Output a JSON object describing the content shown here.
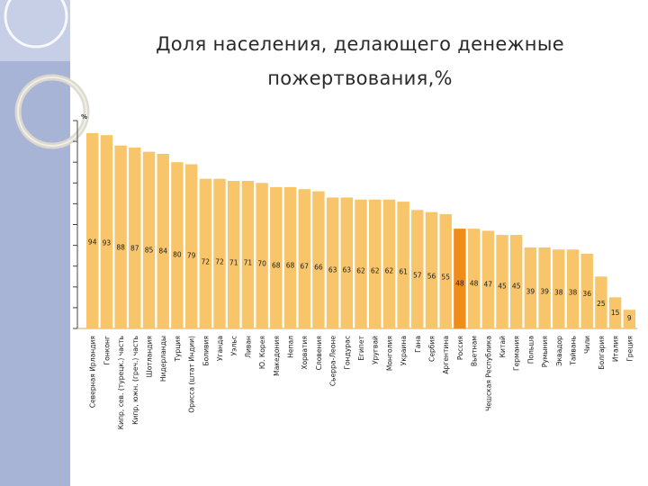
{
  "title": {
    "line1": "Доля населения, делающего денежные",
    "line2": "пожертвования,%"
  },
  "colors": {
    "bar": "#f8c56a",
    "highlight_bar": "#ef8c1a",
    "sidebar": "#a7b4d6"
  },
  "chart_data": {
    "type": "bar",
    "ylabel": "%",
    "ylim": [
      0,
      100
    ],
    "categories": [
      "Северная Ирландия",
      "Гонконг",
      "Кипр, сев. (турецк.) часть",
      "Кипр, южн. (греч.) часть",
      "Шотландия",
      "Нидерланды",
      "Турция",
      "Орисса (штат Индии)",
      "Боливия",
      "Уганда",
      "Уэльс",
      "Ливан",
      "Ю. Корея",
      "Македония",
      "Непал",
      "Хорватия",
      "Словения",
      "Сьерра-Леоне",
      "Гондурас",
      "Египет",
      "Уругвай",
      "Монголия",
      "Украина",
      "Гана",
      "Сербия",
      "Аргентина",
      "Россия",
      "Вьетнам",
      "Чешская Республика",
      "Китай",
      "Германия",
      "Польша",
      "Румыния",
      "Эквадор",
      "Тайвань",
      "Чили",
      "Болгария",
      "Италия",
      "Греция"
    ],
    "values": [
      94,
      93,
      88,
      87,
      85,
      84,
      80,
      79,
      72,
      72,
      71,
      71,
      70,
      68,
      68,
      67,
      66,
      63,
      63,
      62,
      62,
      62,
      61,
      57,
      56,
      55,
      48,
      48,
      47,
      45,
      45,
      39,
      39,
      38,
      38,
      36,
      25,
      15,
      9
    ],
    "highlight_category": "Россия"
  }
}
